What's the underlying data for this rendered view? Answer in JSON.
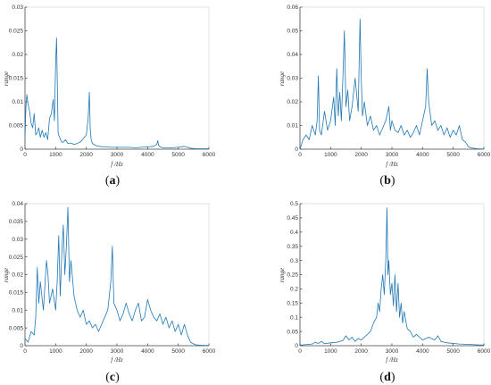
{
  "colors": {
    "line": "#1f77b4",
    "axis": "#4a4a4a",
    "text": "#333333"
  },
  "chart_data": [
    {
      "type": "line",
      "panel": "a",
      "caption": {
        "open": "(",
        "letter": "a",
        "close": ")"
      },
      "xlabel": "f /Hz",
      "ylabel": "range",
      "xlim": [
        0,
        6000
      ],
      "ylim": [
        0,
        0.03
      ],
      "xticks": [
        0,
        1000,
        2000,
        3000,
        4000,
        5000,
        6000
      ],
      "yticks": [
        0,
        0.005,
        0.01,
        0.015,
        0.02,
        0.025,
        0.03
      ],
      "ytick_labels": [
        "0",
        "0.005",
        "0.01",
        "0.015",
        "0.02",
        "0.025",
        "0.03"
      ],
      "x": [
        0,
        30,
        60,
        100,
        150,
        200,
        250,
        300,
        350,
        400,
        450,
        500,
        560,
        620,
        680,
        740,
        800,
        860,
        920,
        960,
        1000,
        1030,
        1060,
        1080,
        1100,
        1130,
        1160,
        1200,
        1260,
        1320,
        1400,
        1500,
        1600,
        1700,
        1800,
        1900,
        2000,
        2060,
        2100,
        2130,
        2160,
        2200,
        2300,
        2400,
        2600,
        2800,
        3000,
        3200,
        3400,
        3600,
        3800,
        4000,
        4200,
        4300,
        4330,
        4360,
        4400,
        4500,
        4800,
        5000,
        5200,
        5300,
        5400,
        5600,
        5800,
        6000
      ],
      "y": [
        0.002,
        0.009,
        0.0115,
        0.0095,
        0.008,
        0.0055,
        0.0045,
        0.0075,
        0.003,
        0.0035,
        0.0045,
        0.0025,
        0.004,
        0.0025,
        0.0035,
        0.002,
        0.0065,
        0.0075,
        0.0105,
        0.006,
        0.018,
        0.0235,
        0.012,
        0.0035,
        0.003,
        0.0025,
        0.002,
        0.0015,
        0.0015,
        0.002,
        0.0012,
        0.0013,
        0.001,
        0.0012,
        0.0015,
        0.0022,
        0.003,
        0.0065,
        0.012,
        0.004,
        0.002,
        0.0012,
        0.0008,
        0.0006,
        0.0005,
        0.0004,
        0.0004,
        0.0004,
        0.0004,
        0.0003,
        0.0004,
        0.0005,
        0.0006,
        0.001,
        0.0018,
        0.0008,
        0.0005,
        0.0003,
        0.0003,
        0.0004,
        0.0006,
        0.0004,
        0.0002,
        0.0001,
        0.0001,
        0.0001
      ]
    },
    {
      "type": "line",
      "panel": "b",
      "caption": {
        "open": "(",
        "letter": "b",
        "close": ")"
      },
      "xlabel": "f /Hz",
      "ylabel": "range",
      "xlim": [
        0,
        6000
      ],
      "ylim": [
        0,
        0.06
      ],
      "xticks": [
        0,
        1000,
        2000,
        3000,
        4000,
        5000,
        6000
      ],
      "yticks": [
        0,
        0.01,
        0.02,
        0.03,
        0.04,
        0.05,
        0.06
      ],
      "ytick_labels": [
        "0",
        "0.01",
        "0.02",
        "0.03",
        "0.04",
        "0.05",
        "0.06"
      ],
      "x": [
        0,
        100,
        200,
        300,
        400,
        500,
        560,
        600,
        640,
        700,
        800,
        900,
        1000,
        1100,
        1150,
        1200,
        1250,
        1300,
        1350,
        1400,
        1450,
        1500,
        1560,
        1620,
        1700,
        1800,
        1900,
        1960,
        2000,
        2040,
        2100,
        2200,
        2300,
        2400,
        2500,
        2600,
        2700,
        2800,
        2900,
        2950,
        3000,
        3100,
        3200,
        3300,
        3400,
        3500,
        3600,
        3700,
        3800,
        3900,
        4000,
        4100,
        4150,
        4200,
        4300,
        4400,
        4500,
        4600,
        4700,
        4800,
        4900,
        5000,
        5100,
        5200,
        5300,
        5400,
        5500,
        5600,
        5800,
        6000
      ],
      "y": [
        0.0,
        0.004,
        0.006,
        0.004,
        0.01,
        0.006,
        0.012,
        0.031,
        0.008,
        0.006,
        0.016,
        0.008,
        0.012,
        0.022,
        0.01,
        0.034,
        0.014,
        0.024,
        0.012,
        0.03,
        0.05,
        0.018,
        0.025,
        0.012,
        0.018,
        0.03,
        0.016,
        0.055,
        0.03,
        0.014,
        0.02,
        0.01,
        0.014,
        0.008,
        0.01,
        0.006,
        0.009,
        0.012,
        0.018,
        0.008,
        0.012,
        0.008,
        0.007,
        0.01,
        0.006,
        0.008,
        0.005,
        0.007,
        0.01,
        0.006,
        0.012,
        0.018,
        0.034,
        0.02,
        0.01,
        0.012,
        0.008,
        0.01,
        0.006,
        0.009,
        0.005,
        0.008,
        0.006,
        0.01,
        0.004,
        0.003,
        0.001,
        0.0005,
        0.0002,
        0.0001
      ]
    },
    {
      "type": "line",
      "panel": "c",
      "caption": {
        "open": "(",
        "letter": "c",
        "close": ")"
      },
      "xlabel": "f /Hz",
      "ylabel": "range",
      "xlim": [
        0,
        6000
      ],
      "ylim": [
        0,
        0.04
      ],
      "xticks": [
        0,
        1000,
        2000,
        3000,
        4000,
        5000,
        6000
      ],
      "yticks": [
        0,
        0.005,
        0.01,
        0.015,
        0.02,
        0.025,
        0.03,
        0.035,
        0.04
      ],
      "ytick_labels": [
        "0",
        "0.005",
        "0.01",
        "0.015",
        "0.02",
        "0.025",
        "0.03",
        "0.035",
        "0.04"
      ],
      "x": [
        0,
        100,
        200,
        300,
        350,
        400,
        450,
        500,
        600,
        700,
        750,
        800,
        900,
        1000,
        1050,
        1100,
        1150,
        1200,
        1250,
        1300,
        1350,
        1400,
        1450,
        1500,
        1600,
        1700,
        1800,
        1900,
        2000,
        2100,
        2200,
        2300,
        2400,
        2500,
        2600,
        2700,
        2800,
        2850,
        2900,
        3000,
        3100,
        3200,
        3300,
        3400,
        3500,
        3600,
        3700,
        3800,
        3900,
        4000,
        4100,
        4200,
        4300,
        4400,
        4500,
        4600,
        4700,
        4800,
        4900,
        5000,
        5100,
        5200,
        5300,
        5400,
        5500,
        5600,
        5800,
        6000
      ],
      "y": [
        0.002,
        0.001,
        0.004,
        0.003,
        0.008,
        0.022,
        0.012,
        0.018,
        0.01,
        0.024,
        0.02,
        0.012,
        0.016,
        0.01,
        0.018,
        0.031,
        0.014,
        0.026,
        0.034,
        0.02,
        0.028,
        0.039,
        0.018,
        0.024,
        0.014,
        0.01,
        0.008,
        0.01,
        0.006,
        0.007,
        0.005,
        0.006,
        0.004,
        0.006,
        0.008,
        0.01,
        0.018,
        0.028,
        0.012,
        0.01,
        0.007,
        0.009,
        0.012,
        0.009,
        0.007,
        0.01,
        0.012,
        0.007,
        0.008,
        0.013,
        0.01,
        0.008,
        0.007,
        0.009,
        0.006,
        0.008,
        0.005,
        0.007,
        0.004,
        0.006,
        0.003,
        0.006,
        0.003,
        0.001,
        0.0005,
        0.0002,
        0.0001,
        0.0001
      ]
    },
    {
      "type": "line",
      "panel": "d",
      "caption": {
        "open": "(",
        "letter": "d",
        "close": ")"
      },
      "xlabel": "f /Hz",
      "ylabel": "range",
      "xlim": [
        0,
        6000
      ],
      "ylim": [
        0,
        0.5
      ],
      "xticks": [
        0,
        1000,
        2000,
        3000,
        4000,
        5000,
        6000
      ],
      "yticks": [
        0,
        0.05,
        0.1,
        0.15,
        0.2,
        0.25,
        0.3,
        0.35,
        0.4,
        0.45,
        0.5
      ],
      "ytick_labels": [
        "0",
        "0.05",
        "0.1",
        "0.15",
        "0.2",
        "0.25",
        "0.3",
        "0.35",
        "0.4",
        "0.45",
        "0.5"
      ],
      "x": [
        0,
        200,
        400,
        500,
        600,
        700,
        800,
        1000,
        1200,
        1400,
        1500,
        1600,
        1700,
        1800,
        1900,
        2000,
        2100,
        2200,
        2300,
        2400,
        2500,
        2550,
        2600,
        2650,
        2700,
        2750,
        2800,
        2840,
        2870,
        2900,
        2950,
        3000,
        3050,
        3100,
        3150,
        3200,
        3250,
        3300,
        3350,
        3400,
        3500,
        3600,
        3700,
        3800,
        4000,
        4200,
        4400,
        4500,
        4600,
        4800,
        5000,
        5200,
        5400,
        5600,
        5800,
        6000
      ],
      "y": [
        0.002,
        0.004,
        0.006,
        0.012,
        0.008,
        0.015,
        0.007,
        0.01,
        0.012,
        0.018,
        0.035,
        0.02,
        0.03,
        0.015,
        0.025,
        0.02,
        0.03,
        0.04,
        0.05,
        0.08,
        0.1,
        0.15,
        0.12,
        0.2,
        0.25,
        0.18,
        0.3,
        0.485,
        0.25,
        0.3,
        0.18,
        0.22,
        0.14,
        0.25,
        0.12,
        0.22,
        0.1,
        0.15,
        0.08,
        0.12,
        0.06,
        0.05,
        0.03,
        0.04,
        0.02,
        0.03,
        0.02,
        0.035,
        0.015,
        0.01,
        0.008,
        0.006,
        0.005,
        0.004,
        0.003,
        0.002
      ]
    }
  ]
}
